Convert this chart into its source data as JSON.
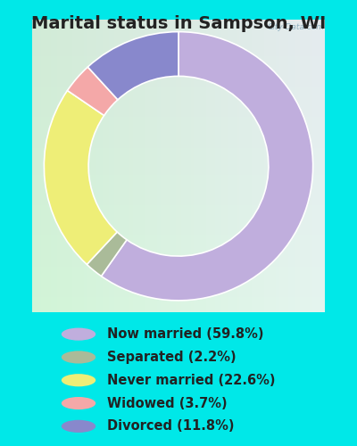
{
  "title": "Marital status in Sampson, WI",
  "slices": [
    59.8,
    2.2,
    22.6,
    3.7,
    11.8
  ],
  "colors": [
    "#c0aedd",
    "#aabb99",
    "#eeee77",
    "#f4a8a8",
    "#8888cc"
  ],
  "labels": [
    "Now married (59.8%)",
    "Separated (2.2%)",
    "Never married (22.6%)",
    "Widowed (3.7%)",
    "Divorced (11.8%)"
  ],
  "legend_colors": [
    "#c0aedd",
    "#aabb99",
    "#eeee77",
    "#f4a8a8",
    "#8888cc"
  ],
  "bg_outer": "#00e8e8",
  "bg_chart_tl": "#d8eedc",
  "bg_chart_br": "#e8f4ee",
  "watermark": "City-Data.com",
  "title_fontsize": 14,
  "legend_fontsize": 10.5,
  "donut_width": 0.38
}
